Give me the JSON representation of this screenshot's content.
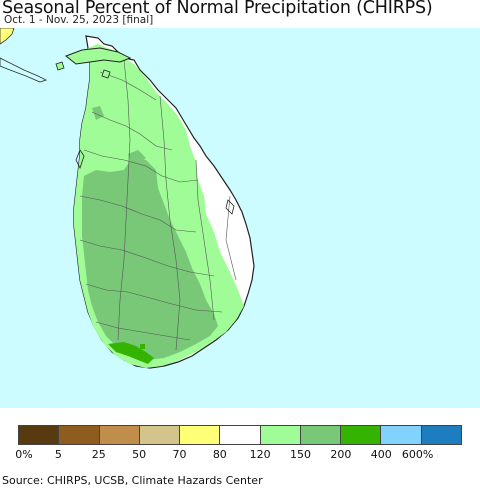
{
  "header": {
    "title": "Seasonal Percent of Normal Precipitation (CHIRPS)",
    "subtitle": "Oct. 1 - Nov. 25, 2023 [final]"
  },
  "map": {
    "region": "Sri Lanka",
    "colors": {
      "ocean": "#ccfcff",
      "class_80_120": "#ffffff",
      "class_120_150": "#a0fc96",
      "class_150_200": "#78c878",
      "class_200_300": "#34b400",
      "class_70_80": "#ffff78"
    }
  },
  "legend": {
    "colors": [
      "#573a10",
      "#8f5c20",
      "#c08e4a",
      "#d2c48a",
      "#ffff78",
      "#ffffff",
      "#a0fc96",
      "#78c878",
      "#34b400",
      "#82d2ff",
      "#1e7dbe"
    ],
    "labels": [
      "0%",
      "5",
      "25",
      "50",
      "70",
      "80",
      "120",
      "150",
      "200",
      "400",
      "600%"
    ]
  },
  "footer": {
    "source": "Source: CHIRPS, UCSB, Climate Hazards Center"
  }
}
